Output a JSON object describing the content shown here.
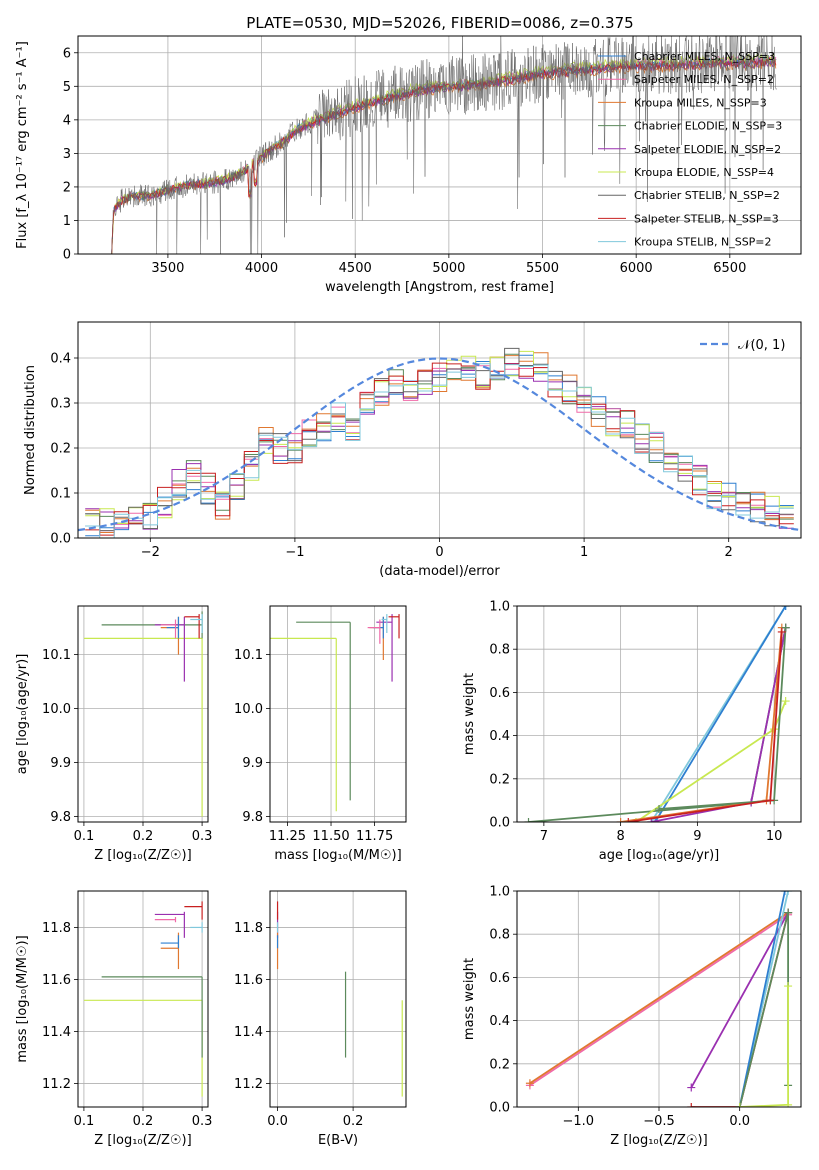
{
  "figure": {
    "title": "PLATE=0530, MJD=52026, FIBERID=0086, z=0.375"
  },
  "colors": {
    "chabrier_miles": "#2e7fd0",
    "salpeter_miles": "#f06aa8",
    "kroupa_miles": "#e07830",
    "chabrier_elodie": "#5c8a5c",
    "salpeter_elodie": "#9a30b0",
    "kroupa_elodie": "#c8e850",
    "chabrier_stelib": "#666666",
    "salpeter_stelib": "#c82020",
    "kroupa_stelib": "#80c8dc",
    "gauss": "#5588dd",
    "grid": "#b0b0b0"
  },
  "chart_data": [
    {
      "id": "spectrum",
      "type": "line",
      "title": "PLATE=0530, MJD=52026, FIBERID=0086, z=0.375",
      "xlabel": "wavelength [Angstrom, rest frame]",
      "ylabel": "Flux [f_λ 10⁻¹⁷ erg cm⁻² s⁻¹ A⁻¹]",
      "xlim": [
        3020,
        6880
      ],
      "ylim": [
        0,
        6.5
      ],
      "xticks": [
        "3500",
        "4000",
        "4500",
        "5000",
        "5500",
        "6000",
        "6500"
      ],
      "yticks": [
        "0",
        "1",
        "2",
        "3",
        "4",
        "5",
        "6"
      ],
      "legend_position": "right",
      "legend": [
        "Chabrier MILES, N_SSP=3",
        "Salpeter MILES, N_SSP=2",
        "Kroupa MILES, N_SSP=3",
        "Chabrier ELODIE, N_SSP=3",
        "Salpeter ELODIE, N_SSP=2",
        "Kroupa ELODIE, N_SSP=4",
        "Chabrier STELIB, N_SSP=2",
        "Salpeter STELIB, N_SSP=3",
        "Kroupa STELIB, N_SSP=2"
      ],
      "continuum": {
        "x": [
          3200,
          3210,
          3250,
          3300,
          3400,
          3500,
          3600,
          3700,
          3800,
          3900,
          4000,
          4100,
          4200,
          4300,
          4400,
          4500,
          4600,
          4700,
          4800,
          4900,
          5000,
          5100,
          5200,
          5300,
          5400,
          5500,
          5600,
          5700,
          5800,
          5900,
          6000,
          6100,
          6200,
          6300,
          6400,
          6500,
          6600,
          6700
        ],
        "y": [
          0,
          1.3,
          1.6,
          1.7,
          1.75,
          1.9,
          2.05,
          2.1,
          2.2,
          2.45,
          2.9,
          3.3,
          3.75,
          4.0,
          4.2,
          4.4,
          4.55,
          4.7,
          4.85,
          4.95,
          5.0,
          5.05,
          5.1,
          5.2,
          5.3,
          5.4,
          5.45,
          5.5,
          5.55,
          5.6,
          5.62,
          5.65,
          5.65,
          5.68,
          5.7,
          5.72,
          5.72,
          5.75
        ]
      },
      "series_scale": [
        1.0,
        1.01,
        0.98,
        1.0,
        0.99,
        1.02,
        0.97,
        0.995,
        1.005
      ]
    },
    {
      "id": "residuals",
      "type": "line",
      "xlabel": "(data-model)/error",
      "ylabel": "Normed distribution",
      "xlim": [
        -2.5,
        2.5
      ],
      "ylim": [
        0,
        0.48
      ],
      "xticks": [
        "−2",
        "−1",
        "0",
        "1",
        "2"
      ],
      "yticks": [
        "0.0",
        "0.1",
        "0.2",
        "0.3",
        "0.4"
      ],
      "legend_position": "top-right",
      "gauss_label": "𝒩(0, 1)",
      "hist_centers": [
        -2.4,
        -2.3,
        -2.2,
        -2.1,
        -2.0,
        -1.9,
        -1.8,
        -1.7,
        -1.6,
        -1.5,
        -1.4,
        -1.3,
        -1.2,
        -1.1,
        -1.0,
        -0.9,
        -0.8,
        -0.7,
        -0.6,
        -0.5,
        -0.4,
        -0.3,
        -0.2,
        -0.1,
        0.0,
        0.1,
        0.2,
        0.3,
        0.4,
        0.5,
        0.6,
        0.7,
        0.8,
        0.9,
        1.0,
        1.1,
        1.2,
        1.3,
        1.4,
        1.5,
        1.6,
        1.7,
        1.8,
        1.9,
        2.0,
        2.1,
        2.2,
        2.3,
        2.4
      ],
      "hist_base": [
        0.04,
        0.03,
        0.035,
        0.04,
        0.05,
        0.08,
        0.12,
        0.14,
        0.11,
        0.07,
        0.11,
        0.16,
        0.22,
        0.2,
        0.2,
        0.23,
        0.25,
        0.27,
        0.25,
        0.3,
        0.32,
        0.35,
        0.33,
        0.35,
        0.36,
        0.37,
        0.38,
        0.36,
        0.38,
        0.39,
        0.39,
        0.38,
        0.34,
        0.33,
        0.31,
        0.28,
        0.26,
        0.25,
        0.22,
        0.2,
        0.17,
        0.15,
        0.13,
        0.1,
        0.09,
        0.08,
        0.07,
        0.06,
        0.05
      ]
    },
    {
      "id": "z_age",
      "type": "scatter",
      "xlabel": "Z [log₁₀(Z/Z☉)]",
      "ylabel": "age  [log₁₀(age/yr)]",
      "xlim": [
        0.09,
        0.31
      ],
      "ylim": [
        9.79,
        10.19
      ],
      "xticks": [
        "0.1",
        "0.2",
        "0.3"
      ],
      "yticks": [
        "9.8",
        "9.9",
        "10.0",
        "10.1"
      ],
      "points": [
        {
          "x": 0.3,
          "y": 10.13,
          "xlo": 0.1,
          "ylo": 9.8,
          "yhi": 10.13,
          "c": 5
        },
        {
          "x": 0.3,
          "y": 10.155,
          "xlo": 0.13,
          "ylo": 10.13,
          "yhi": 10.18,
          "c": 3
        },
        {
          "x": 0.27,
          "y": 10.155,
          "xlo": 0.22,
          "ylo": 10.05,
          "yhi": 10.17,
          "c": 4
        },
        {
          "x": 0.26,
          "y": 10.15,
          "xlo": 0.23,
          "ylo": 10.1,
          "yhi": 10.17,
          "c": 2
        },
        {
          "x": 0.26,
          "y": 10.15,
          "xlo": 0.24,
          "ylo": 10.13,
          "yhi": 10.17,
          "c": 0
        },
        {
          "x": 0.295,
          "y": 10.17,
          "xlo": 0.27,
          "ylo": 10.13,
          "yhi": 10.175,
          "c": 7
        },
        {
          "x": 0.3,
          "y": 10.165,
          "xlo": 0.28,
          "ylo": 10.14,
          "yhi": 10.175,
          "c": 8
        },
        {
          "x": 0.255,
          "y": 10.155,
          "xlo": 0.23,
          "ylo": 10.13,
          "yhi": 10.165,
          "c": 1
        }
      ]
    },
    {
      "id": "mass_age",
      "type": "scatter",
      "xlabel": "mass [log₁₀(M/M☉)]",
      "ylabel": "",
      "xlim": [
        11.15,
        11.93
      ],
      "ylim": [
        9.79,
        10.19
      ],
      "xticks": [
        "11.25",
        "11.50",
        "11.75"
      ],
      "yticks": [
        "9.8",
        "9.9",
        "10.0",
        "10.1"
      ],
      "points": [
        {
          "x": 11.53,
          "y": 10.13,
          "xlo": 11.15,
          "ylo": 9.81,
          "yhi": 10.13,
          "c": 5
        },
        {
          "x": 11.61,
          "y": 10.16,
          "xlo": 11.3,
          "ylo": 9.83,
          "yhi": 10.16,
          "c": 3
        },
        {
          "x": 11.85,
          "y": 10.16,
          "xlo": 11.76,
          "ylo": 10.05,
          "yhi": 10.175,
          "c": 4
        },
        {
          "x": 11.8,
          "y": 10.15,
          "xlo": 11.72,
          "ylo": 10.09,
          "yhi": 10.17,
          "c": 2
        },
        {
          "x": 11.8,
          "y": 10.15,
          "xlo": 11.74,
          "ylo": 10.13,
          "yhi": 10.17,
          "c": 0
        },
        {
          "x": 11.89,
          "y": 10.17,
          "xlo": 11.83,
          "ylo": 10.13,
          "yhi": 10.175,
          "c": 7
        },
        {
          "x": 11.82,
          "y": 10.165,
          "xlo": 11.79,
          "ylo": 10.14,
          "yhi": 10.175,
          "c": 8
        },
        {
          "x": 11.78,
          "y": 10.15,
          "xlo": 11.71,
          "ylo": 10.12,
          "yhi": 10.165,
          "c": 1
        }
      ]
    },
    {
      "id": "age_weight",
      "type": "line",
      "xlabel": "age  [log₁₀(age/yr)]",
      "ylabel": "mass weight",
      "xlim": [
        6.65,
        10.35
      ],
      "ylim": [
        0,
        1.0
      ],
      "xticks": [
        "7",
        "8",
        "9",
        "10"
      ],
      "yticks": [
        "0.0",
        "0.2",
        "0.4",
        "0.6",
        "0.8",
        "1.0"
      ],
      "series": [
        {
          "c": 8,
          "x": [
            8.4,
            10.15
          ],
          "y": [
            0.0,
            1.0
          ]
        },
        {
          "c": 0,
          "x": [
            8.45,
            10.15
          ],
          "y": [
            0.0,
            1.0
          ]
        },
        {
          "c": 3,
          "x": [
            6.8,
            9.7,
            10.15
          ],
          "y": [
            0.0,
            0.09,
            0.9
          ]
        },
        {
          "c": 4,
          "x": [
            8.4,
            9.7,
            10.15
          ],
          "y": [
            0.0,
            0.09,
            0.9
          ]
        },
        {
          "c": 5,
          "x": [
            8.2,
            10.0,
            10.15
          ],
          "y": [
            0.0,
            0.43,
            0.56
          ]
        },
        {
          "c": 2,
          "x": [
            8.0,
            9.9,
            10.1
          ],
          "y": [
            0.0,
            0.1,
            0.9
          ]
        },
        {
          "c": 3,
          "x": [
            8.5,
            10.0,
            10.15
          ],
          "y": [
            0.06,
            0.1,
            0.9
          ]
        },
        {
          "c": 7,
          "x": [
            8.1,
            9.95,
            10.1
          ],
          "y": [
            0.0,
            0.1,
            0.88
          ]
        }
      ]
    },
    {
      "id": "z_mass",
      "type": "scatter",
      "xlabel": "Z [log₁₀(Z/Z☉)]",
      "ylabel": "mass [log₁₀(M/M☉)]",
      "xlim": [
        0.09,
        0.31
      ],
      "ylim": [
        11.11,
        11.94
      ],
      "xticks": [
        "0.1",
        "0.2",
        "0.3"
      ],
      "yticks": [
        "11.2",
        "11.4",
        "11.6",
        "11.8"
      ],
      "points": [
        {
          "x": 0.3,
          "y": 11.52,
          "xlo": 0.1,
          "ylo": 11.15,
          "yhi": 11.52,
          "c": 5
        },
        {
          "x": 0.3,
          "y": 11.61,
          "xlo": 0.13,
          "ylo": 11.3,
          "yhi": 11.61,
          "c": 3
        },
        {
          "x": 0.27,
          "y": 11.85,
          "xlo": 0.22,
          "ylo": 11.76,
          "yhi": 11.86,
          "c": 4
        },
        {
          "x": 0.26,
          "y": 11.72,
          "xlo": 0.23,
          "ylo": 11.64,
          "yhi": 11.78,
          "c": 2
        },
        {
          "x": 0.26,
          "y": 11.74,
          "xlo": 0.23,
          "ylo": 11.72,
          "yhi": 11.77,
          "c": 0
        },
        {
          "x": 0.3,
          "y": 11.88,
          "xlo": 0.27,
          "ylo": 11.83,
          "yhi": 11.9,
          "c": 7
        },
        {
          "x": 0.3,
          "y": 11.8,
          "xlo": 0.28,
          "ylo": 11.78,
          "yhi": 11.82,
          "c": 8
        },
        {
          "x": 0.255,
          "y": 11.83,
          "xlo": 0.22,
          "ylo": 11.82,
          "yhi": 11.84,
          "c": 1
        }
      ]
    },
    {
      "id": "ebv_mass",
      "type": "scatter",
      "xlabel": "E(B-V)",
      "ylabel": "",
      "xlim": [
        -0.02,
        0.34
      ],
      "ylim": [
        11.11,
        11.94
      ],
      "xticks": [
        "0.0",
        "0.2"
      ],
      "yticks": [
        "11.2",
        "11.4",
        "11.6",
        "11.8"
      ],
      "points": [
        {
          "x": 0.33,
          "ylo": 11.15,
          "yhi": 11.52,
          "c": 5
        },
        {
          "x": 0.18,
          "ylo": 11.3,
          "yhi": 11.63,
          "c": 3
        },
        {
          "x": 0.0,
          "ylo": 11.76,
          "yhi": 11.86,
          "c": 4
        },
        {
          "x": 0.0,
          "ylo": 11.64,
          "yhi": 11.78,
          "c": 2
        },
        {
          "x": 0.0,
          "ylo": 11.72,
          "yhi": 11.77,
          "c": 0
        },
        {
          "x": 0.0,
          "ylo": 11.83,
          "yhi": 11.9,
          "c": 7
        },
        {
          "x": 0.0,
          "ylo": 11.78,
          "yhi": 11.82,
          "c": 8
        }
      ]
    },
    {
      "id": "z_weight",
      "type": "line",
      "xlabel": "Z [log₁₀(Z/Z☉)]",
      "ylabel": "mass weight",
      "xlim": [
        -1.38,
        0.38
      ],
      "ylim": [
        0,
        1.0
      ],
      "xticks": [
        "−1.0",
        "−0.5",
        "0.0"
      ],
      "yticks": [
        "0.0",
        "0.2",
        "0.4",
        "0.6",
        "0.8",
        "1.0"
      ],
      "series": [
        {
          "c": 1,
          "x": [
            -1.3,
            0.3
          ],
          "y": [
            0.1,
            0.89
          ]
        },
        {
          "c": 2,
          "x": [
            -1.3,
            0.3
          ],
          "y": [
            0.11,
            0.9
          ]
        },
        {
          "c": 4,
          "x": [
            -0.3,
            0.3
          ],
          "y": [
            0.09,
            0.9
          ]
        },
        {
          "c": 7,
          "x": [
            -0.3,
            0.0,
            0.3
          ],
          "y": [
            0.0,
            0.0,
            0.9
          ]
        },
        {
          "c": 8,
          "x": [
            0.0,
            0.3
          ],
          "y": [
            0.0,
            1.0
          ]
        },
        {
          "c": 0,
          "x": [
            0.0,
            0.28
          ],
          "y": [
            0.0,
            1.0
          ]
        },
        {
          "c": 3,
          "x": [
            0.0,
            0.3,
            0.3
          ],
          "y": [
            0.0,
            0.9,
            0.1
          ]
        },
        {
          "c": 5,
          "x": [
            0.0,
            0.3,
            0.3
          ],
          "y": [
            0.0,
            0.01,
            0.56
          ]
        }
      ]
    }
  ]
}
